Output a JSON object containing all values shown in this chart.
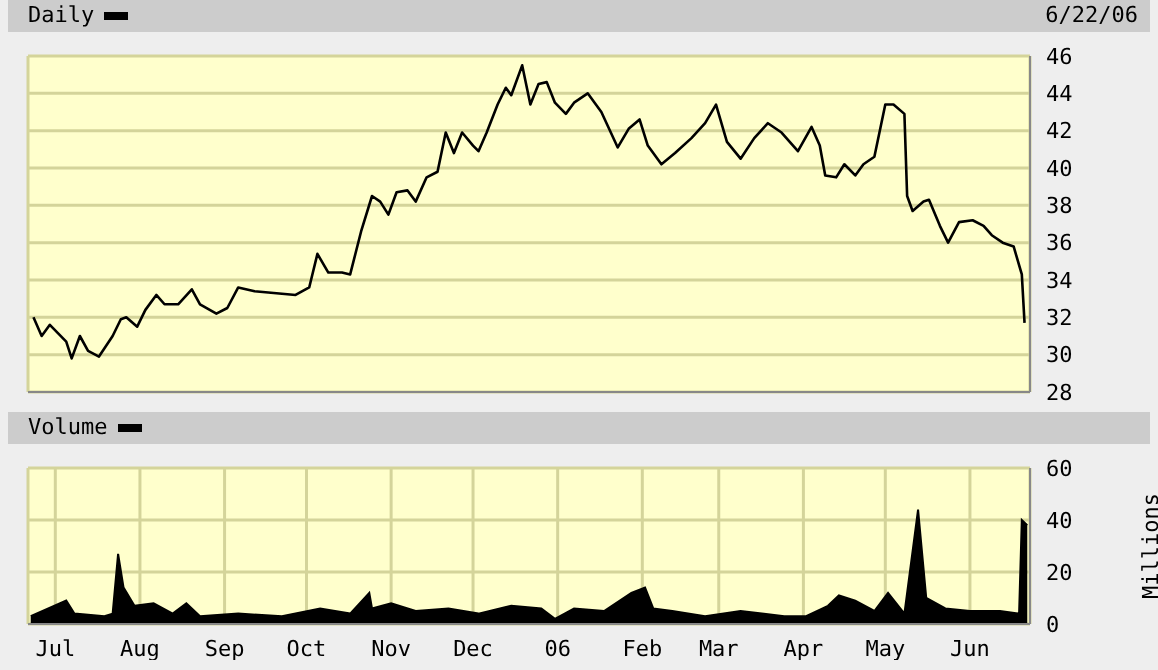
{
  "chart_data": [
    {
      "type": "line",
      "title": "Daily",
      "subtitle": "6/22/06",
      "xlim": [
        "2005-06-21",
        "2006-06-23"
      ],
      "xticks": [
        {
          "value": "2005-07-01",
          "label": null
        },
        {
          "value": "2005-08-01",
          "label": null
        },
        {
          "value": "2005-09-01",
          "label": null
        },
        {
          "value": "2005-10-01",
          "label": null
        },
        {
          "value": "2005-11-01",
          "label": null
        },
        {
          "value": "2005-12-01",
          "label": null
        },
        {
          "value": "2006-01-01",
          "label": null
        },
        {
          "value": "2006-02-01",
          "label": null
        },
        {
          "value": "2006-03-01",
          "label": null
        },
        {
          "value": "2006-04-01",
          "label": null
        },
        {
          "value": "2006-05-01",
          "label": null
        },
        {
          "value": "2006-06-01",
          "label": null
        }
      ],
      "ylim": [
        28,
        46
      ],
      "yticks": [
        28,
        30,
        32,
        34,
        36,
        38,
        40,
        42,
        44,
        46
      ],
      "grid": true,
      "tick_labels": "y",
      "x": [
        "2005-06-23",
        "2005-06-26",
        "2005-06-29",
        "2005-07-05",
        "2005-07-07",
        "2005-07-10",
        "2005-07-13",
        "2005-07-17",
        "2005-07-22",
        "2005-07-25",
        "2005-07-27",
        "2005-07-31",
        "2005-08-03",
        "2005-08-07",
        "2005-08-10",
        "2005-08-15",
        "2005-08-20",
        "2005-08-23",
        "2005-08-29",
        "2005-09-02",
        "2005-09-06",
        "2005-09-12",
        "2005-09-19",
        "2005-09-27",
        "2005-10-02",
        "2005-10-05",
        "2005-10-09",
        "2005-10-14",
        "2005-10-17",
        "2005-10-21",
        "2005-10-25",
        "2005-10-28",
        "2005-10-31",
        "2005-11-03",
        "2005-11-07",
        "2005-11-10",
        "2005-11-14",
        "2005-11-18",
        "2005-11-21",
        "2005-11-24",
        "2005-11-27",
        "2005-12-01",
        "2005-12-03",
        "2005-12-06",
        "2005-12-10",
        "2005-12-13",
        "2005-12-15",
        "2005-12-19",
        "2005-12-22",
        "2005-12-25",
        "2005-12-28",
        "2005-12-31",
        "2006-01-04",
        "2006-01-07",
        "2006-01-12",
        "2006-01-17",
        "2006-01-23",
        "2006-01-27",
        "2006-01-31",
        "2006-02-03",
        "2006-02-08",
        "2006-02-13",
        "2006-02-19",
        "2006-02-24",
        "2006-02-28",
        "2006-03-04",
        "2006-03-09",
        "2006-03-14",
        "2006-03-19",
        "2006-03-24",
        "2006-03-30",
        "2006-04-04",
        "2006-04-07",
        "2006-04-09",
        "2006-04-13",
        "2006-04-16",
        "2006-04-20",
        "2006-04-23",
        "2006-04-27",
        "2006-05-01",
        "2006-05-04",
        "2006-05-08",
        "2006-05-09",
        "2006-05-11",
        "2006-05-15",
        "2006-05-17",
        "2006-05-21",
        "2006-05-24",
        "2006-05-28",
        "2006-06-02",
        "2006-06-06",
        "2006-06-09",
        "2006-06-13",
        "2006-06-17",
        "2006-06-20",
        "2006-06-21"
      ],
      "series": [
        {
          "color": "#000000",
          "values": [
            32.0,
            31.0,
            31.6,
            30.7,
            29.8,
            31.0,
            30.2,
            29.9,
            31.0,
            31.9,
            32.0,
            31.5,
            32.4,
            33.2,
            32.7,
            32.7,
            33.5,
            32.7,
            32.2,
            32.5,
            33.6,
            33.4,
            33.3,
            33.2,
            33.6,
            35.4,
            34.4,
            34.4,
            34.3,
            36.6,
            38.5,
            38.2,
            37.5,
            38.7,
            38.8,
            38.2,
            39.5,
            39.8,
            41.9,
            40.8,
            41.9,
            41.2,
            40.9,
            41.9,
            43.4,
            44.3,
            43.9,
            45.5,
            43.4,
            44.5,
            44.6,
            43.5,
            42.9,
            43.5,
            44.0,
            43.0,
            41.1,
            42.1,
            42.6,
            41.2,
            40.2,
            40.8,
            41.6,
            42.4,
            43.4,
            41.4,
            40.5,
            41.6,
            42.4,
            41.9,
            40.9,
            42.2,
            41.2,
            39.6,
            39.5,
            40.2,
            39.6,
            40.2,
            40.6,
            43.4,
            43.4,
            42.9,
            38.5,
            37.7,
            38.2,
            38.3,
            36.9,
            36.0,
            37.1,
            37.2,
            36.9,
            36.4,
            36.0,
            35.8,
            34.3,
            31.7
          ]
        }
      ]
    },
    {
      "type": "area",
      "title": "Volume",
      "ylabel": "Millions",
      "xlim": [
        "2005-06-21",
        "2006-06-23"
      ],
      "xticks": [
        {
          "value": "2005-07-01",
          "label": "Jul"
        },
        {
          "value": "2005-08-01",
          "label": "Aug"
        },
        {
          "value": "2005-09-01",
          "label": "Sep"
        },
        {
          "value": "2005-10-01",
          "label": "Oct"
        },
        {
          "value": "2005-11-01",
          "label": "Nov"
        },
        {
          "value": "2005-12-01",
          "label": "Dec"
        },
        {
          "value": "2006-01-01",
          "label": "06"
        },
        {
          "value": "2006-02-01",
          "label": "Feb"
        },
        {
          "value": "2006-03-01",
          "label": "Mar"
        },
        {
          "value": "2006-04-01",
          "label": "Apr"
        },
        {
          "value": "2006-05-01",
          "label": "May"
        },
        {
          "value": "2006-06-01",
          "label": "Jun"
        }
      ],
      "ylim": [
        0,
        60
      ],
      "yticks": [
        0,
        20,
        40,
        60
      ],
      "grid": true,
      "x": [
        "2005-06-22",
        "2005-07-05",
        "2005-07-08",
        "2005-07-19",
        "2005-07-22",
        "2005-07-24",
        "2005-07-26",
        "2005-07-30",
        "2005-08-06",
        "2005-08-13",
        "2005-08-18",
        "2005-08-23",
        "2005-09-06",
        "2005-09-22",
        "2005-10-06",
        "2005-10-17",
        "2005-10-24",
        "2005-10-25",
        "2005-11-01",
        "2005-11-10",
        "2005-11-22",
        "2005-12-03",
        "2005-12-15",
        "2005-12-26",
        "2005-12-31",
        "2006-01-07",
        "2006-01-18",
        "2006-01-28",
        "2006-02-02",
        "2006-02-05",
        "2006-02-12",
        "2006-02-24",
        "2006-03-09",
        "2006-03-25",
        "2006-04-02",
        "2006-04-10",
        "2006-04-14",
        "2006-04-20",
        "2006-04-27",
        "2006-05-02",
        "2006-05-08",
        "2006-05-13",
        "2006-05-16",
        "2006-05-23",
        "2006-06-01",
        "2006-06-12",
        "2006-06-19",
        "2006-06-20",
        "2006-06-22"
      ],
      "series": [
        {
          "color": "#000000",
          "values": [
            3,
            9,
            4,
            3,
            4,
            27,
            14,
            7,
            8,
            4,
            8,
            3,
            4,
            3,
            6,
            4,
            12,
            6,
            8,
            5,
            6,
            4,
            7,
            6,
            2,
            6,
            5,
            12,
            14,
            6,
            5,
            3,
            5,
            3,
            3,
            7,
            11,
            9,
            5,
            12,
            4,
            44,
            10,
            6,
            5,
            5,
            4,
            40,
            38
          ]
        }
      ]
    }
  ]
}
